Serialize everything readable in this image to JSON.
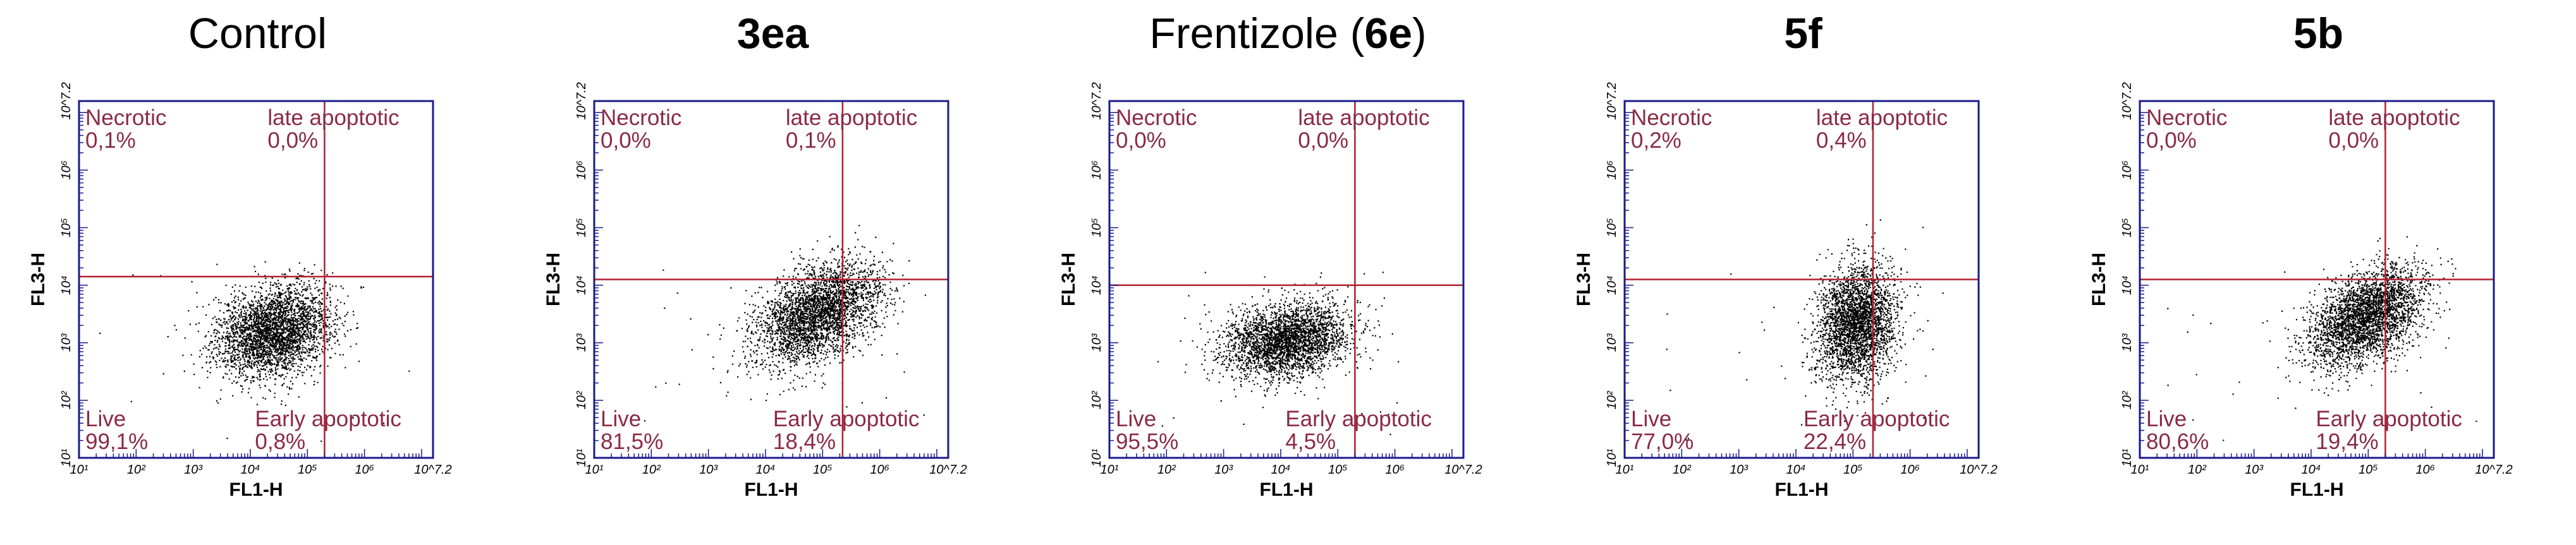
{
  "chart_data": [
    {
      "type": "scatter",
      "title": "Control",
      "title_parts": [
        {
          "text": "Control",
          "bold": false
        }
      ],
      "xlabel": "FL1-H",
      "ylabel": "FL3-H",
      "x_ticks": [
        "10¹",
        "10²",
        "10³",
        "10⁴",
        "10⁵",
        "10⁶",
        "10^7.2"
      ],
      "y_ticks": [
        "10¹",
        "10²",
        "10³",
        "10⁴",
        "10⁵",
        "10⁶",
        "10^7.2"
      ],
      "axis": "log",
      "xlim": [
        1,
        7.2
      ],
      "ylim": [
        1,
        7.2
      ],
      "gate": {
        "x": 5.3,
        "y": 4.15
      },
      "quadrants": {
        "necrotic": {
          "label": "Necrotic",
          "value": "0,1%"
        },
        "late": {
          "label": "late apoptotic",
          "value": "0,0%"
        },
        "live": {
          "label": "Live",
          "value": "99,1%"
        },
        "early": {
          "label": "Early apoptotic",
          "value": "0,8%"
        }
      },
      "population": {
        "cx": 4.4,
        "cy": 3.2,
        "sx": 0.5,
        "sy": 0.38,
        "n": 3200,
        "tilt": 0.15
      }
    },
    {
      "type": "scatter",
      "title": "3ea",
      "title_parts": [
        {
          "text": "3ea",
          "bold": true
        }
      ],
      "xlabel": "FL1-H",
      "ylabel": "FL3-H",
      "x_ticks": [
        "10¹",
        "10²",
        "10³",
        "10⁴",
        "10⁵",
        "10⁶",
        "10^7.2"
      ],
      "y_ticks": [
        "10¹",
        "10²",
        "10³",
        "10⁴",
        "10⁵",
        "10⁶",
        "10^7.2"
      ],
      "axis": "log",
      "xlim": [
        1,
        7.2
      ],
      "ylim": [
        1,
        7.2
      ],
      "gate": {
        "x": 5.35,
        "y": 4.1
      },
      "quadrants": {
        "necrotic": {
          "label": "Necrotic",
          "value": "0,0%"
        },
        "late": {
          "label": "late apoptotic",
          "value": "0,1%"
        },
        "live": {
          "label": "Live",
          "value": "81,5%"
        },
        "early": {
          "label": "Early apoptotic",
          "value": "18,4%"
        }
      },
      "population": {
        "cx": 4.9,
        "cy": 3.5,
        "sx": 0.55,
        "sy": 0.4,
        "n": 3200,
        "tilt": 0.35
      }
    },
    {
      "type": "scatter",
      "title": "Frentizole (6e)",
      "title_parts": [
        {
          "text": "Frentizole (",
          "bold": false
        },
        {
          "text": "6e",
          "bold": true
        },
        {
          "text": ")",
          "bold": false
        }
      ],
      "xlabel": "FL1-H",
      "ylabel": "FL3-H",
      "x_ticks": [
        "10¹",
        "10²",
        "10³",
        "10⁴",
        "10⁵",
        "10⁶",
        "10^7.2"
      ],
      "y_ticks": [
        "10¹",
        "10²",
        "10³",
        "10⁴",
        "10⁵",
        "10⁶",
        "10^7.2"
      ],
      "axis": "log",
      "xlim": [
        1,
        7.2
      ],
      "ylim": [
        1,
        7.2
      ],
      "gate": {
        "x": 5.3,
        "y": 4.0
      },
      "quadrants": {
        "necrotic": {
          "label": "Necrotic",
          "value": "0,0%"
        },
        "late": {
          "label": "late apoptotic",
          "value": "0,0%"
        },
        "live": {
          "label": "Live",
          "value": "95,5%"
        },
        "early": {
          "label": "Early apoptotic",
          "value": "4,5%"
        }
      },
      "population": {
        "cx": 4.1,
        "cy": 3.05,
        "sx": 0.55,
        "sy": 0.32,
        "n": 3000,
        "tilt": 0.1
      }
    },
    {
      "type": "scatter",
      "title": "5f",
      "title_parts": [
        {
          "text": "5f",
          "bold": true
        }
      ],
      "xlabel": "FL1-H",
      "ylabel": "FL3-H",
      "x_ticks": [
        "10¹",
        "10²",
        "10³",
        "10⁴",
        "10⁵",
        "10⁶",
        "10^7.2"
      ],
      "y_ticks": [
        "10¹",
        "10²",
        "10³",
        "10⁴",
        "10⁵",
        "10⁶",
        "10^7.2"
      ],
      "axis": "log",
      "xlim": [
        1,
        7.2
      ],
      "ylim": [
        1,
        7.2
      ],
      "gate": {
        "x": 5.35,
        "y": 4.1
      },
      "quadrants": {
        "necrotic": {
          "label": "Necrotic",
          "value": "0,2%"
        },
        "late": {
          "label": "late apoptotic",
          "value": "0,4%"
        },
        "live": {
          "label": "Live",
          "value": "77,0%"
        },
        "early": {
          "label": "Early apoptotic",
          "value": "22,4%"
        }
      },
      "population": {
        "cx": 5.05,
        "cy": 3.35,
        "sx": 0.35,
        "sy": 0.5,
        "n": 3000,
        "tilt": 0.2
      }
    },
    {
      "type": "scatter",
      "title": "5b",
      "title_parts": [
        {
          "text": "5b",
          "bold": true
        }
      ],
      "xlabel": "FL1-H",
      "ylabel": "FL3-H",
      "x_ticks": [
        "10¹",
        "10²",
        "10³",
        "10⁴",
        "10⁵",
        "10⁶",
        "10^7.2"
      ],
      "y_ticks": [
        "10¹",
        "10²",
        "10³",
        "10⁴",
        "10⁵",
        "10⁶",
        "10^7.2"
      ],
      "axis": "log",
      "xlim": [
        1,
        7.2
      ],
      "ylim": [
        1,
        7.2
      ],
      "gate": {
        "x": 5.3,
        "y": 4.1
      },
      "quadrants": {
        "necrotic": {
          "label": "Necrotic",
          "value": "0,0%"
        },
        "late": {
          "label": "late apoptotic",
          "value": "0,0%"
        },
        "live": {
          "label": "Live",
          "value": "80,6%"
        },
        "early": {
          "label": "Early apoptotic",
          "value": "19,4%"
        }
      },
      "population": {
        "cx": 4.95,
        "cy": 3.45,
        "sx": 0.5,
        "sy": 0.38,
        "n": 3200,
        "tilt": 0.4
      }
    }
  ]
}
